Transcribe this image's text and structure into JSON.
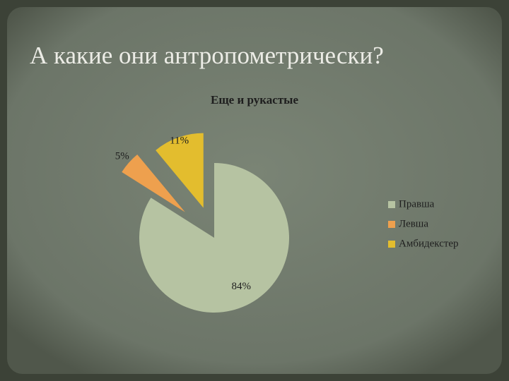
{
  "slide_title": "А какие они антропометрически?",
  "chart_data": {
    "type": "pie",
    "title": "Еще и рукастые",
    "categories": [
      "Правша",
      "Левша",
      "Амбидекстер"
    ],
    "values": [
      84,
      5,
      11
    ],
    "value_labels": [
      "84%",
      "5%",
      "11%"
    ],
    "colors": [
      "#b6c3a2",
      "#eea04e",
      "#e3bd2e"
    ],
    "legend": "right"
  }
}
